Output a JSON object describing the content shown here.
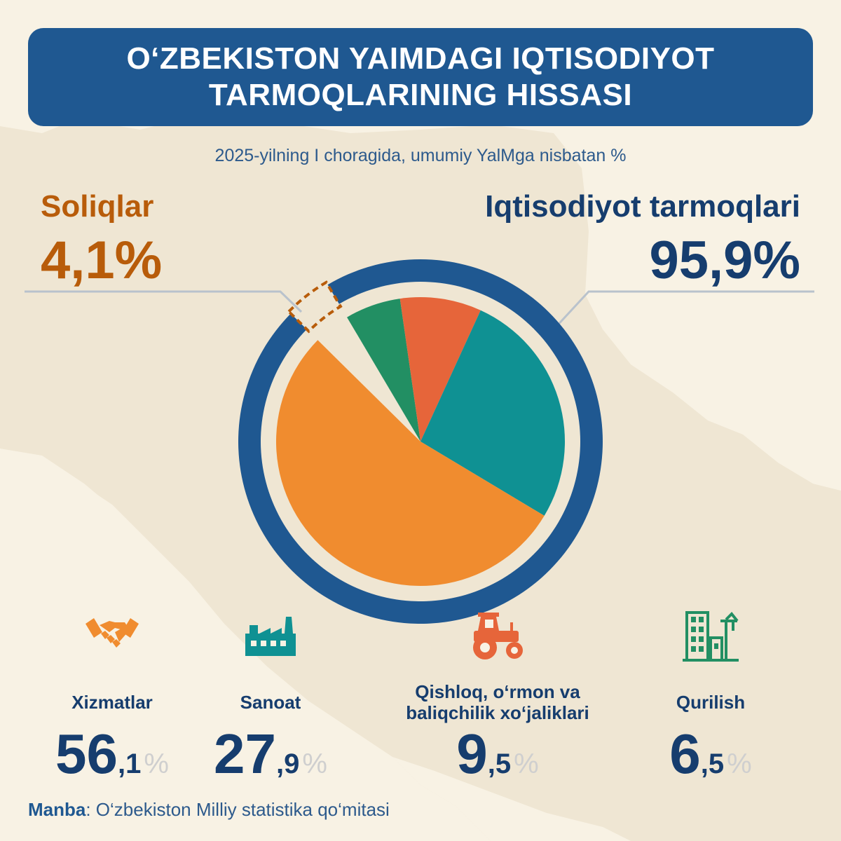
{
  "title": {
    "line1": "O‘ZBEKISTON YAIMDAGI IQTISODIYOT",
    "line2": "TARMOQLARINING HISSASI"
  },
  "subtitle": "2025-yilning I choragida, umumiy YalMga nisbatan %",
  "taxes": {
    "label": "Soliqlar",
    "value": "4,1%"
  },
  "industries": {
    "label": "Iqtisodiyot tarmoqlari",
    "value": "95,9%"
  },
  "chart_data": {
    "type": "pie",
    "title": "",
    "outer": [
      {
        "name": "Soliqlar",
        "value": 4.1,
        "color": "#b85c0a",
        "style": "dashed"
      },
      {
        "name": "Iqtisodiyot tarmoqlari",
        "value": 95.9,
        "color": "#1f5891"
      }
    ],
    "inner_series": "Iqtisodiyot tarmoqlari",
    "inner": [
      {
        "name": "Xizmatlar",
        "value": 56.1,
        "color": "#f08c2f"
      },
      {
        "name": "Sanoat",
        "value": 27.9,
        "color": "#0f9193"
      },
      {
        "name": "Qishloq, o‘rmon va baliqchilik xo‘jaliklari",
        "value": 9.5,
        "color": "#e6653a"
      },
      {
        "name": "Qurilish",
        "value": 6.5,
        "color": "#228f63"
      }
    ]
  },
  "sectors": [
    {
      "name": "Xizmatlar",
      "int": "56",
      "dec": ",1",
      "pct": "%",
      "color": "#f08c2f",
      "icon": "handshake-icon"
    },
    {
      "name": "Sanoat",
      "int": "27",
      "dec": ",9",
      "pct": "%",
      "color": "#0f9193",
      "icon": "factory-icon"
    },
    {
      "name": "Qishloq, o‘rmon va baliqchilik xo‘jaliklari",
      "int": "9",
      "dec": ",5",
      "pct": "%",
      "color": "#e6653a",
      "icon": "tractor-icon"
    },
    {
      "name": "Qurilish",
      "int": "6",
      "dec": ",5",
      "pct": "%",
      "color": "#228f63",
      "icon": "building-crane-icon"
    }
  ],
  "source": {
    "label": "Manba",
    "text": ": O‘zbekiston Milliy statistika qo‘mitasi"
  }
}
